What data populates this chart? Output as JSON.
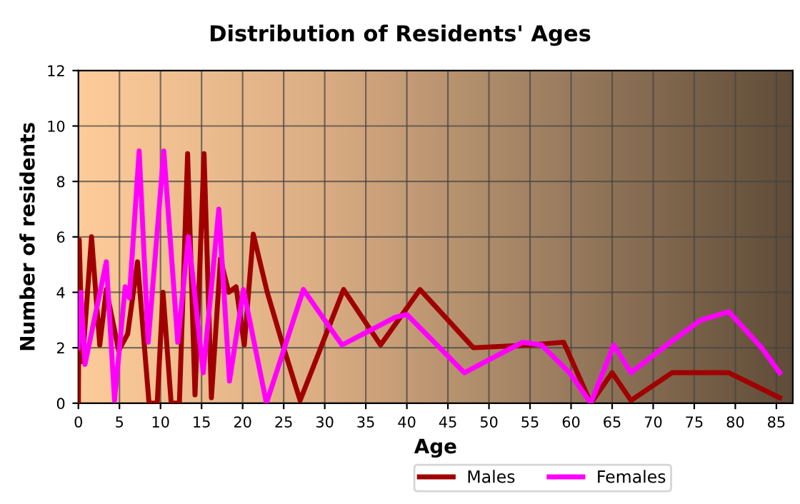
{
  "chart_data": {
    "type": "line",
    "title": "Distribution of Residents' Ages",
    "xlabel": "Age",
    "ylabel": "Number of residents",
    "xlim": [
      0,
      87
    ],
    "xticks": [
      0,
      5,
      10,
      15,
      20,
      25,
      30,
      35,
      40,
      45,
      50,
      55,
      60,
      65,
      70,
      75,
      80,
      85
    ],
    "ylim": [
      0,
      12
    ],
    "yticks": [
      0,
      2,
      4,
      6,
      8,
      10,
      12
    ],
    "grid": true,
    "legend": "bottom",
    "marker": "none",
    "line_style": "solid",
    "series": [
      {
        "name": "Males",
        "color": "#a00000",
        "x": [
          0,
          0.1,
          0.5,
          1.6,
          2.6,
          3.4,
          4.9,
          6,
          7.2,
          8.6,
          9.6,
          10.3,
          11.3,
          12.3,
          13.3,
          14.2,
          15.3,
          16.2,
          17.3,
          18.3,
          19.2,
          20.2,
          21.3,
          23,
          25,
          27,
          32.3,
          36.8,
          41.6,
          48.1,
          55,
          59.1,
          62.4,
          65,
          67.3,
          72.3,
          76.3,
          79.2,
          85.4
        ],
        "values": [
          0,
          5.9,
          1.5,
          6,
          2.1,
          4.1,
          1.9,
          2.5,
          5.1,
          0,
          0,
          4,
          0,
          0,
          9,
          0.3,
          9,
          0.2,
          5.2,
          4,
          4.2,
          2.1,
          6.1,
          4,
          2,
          0.1,
          4.1,
          2.1,
          4.1,
          2,
          2.1,
          2.2,
          0,
          1.1,
          0.1,
          1.1,
          1.1,
          1.1,
          0.2
        ]
      },
      {
        "name": "Females",
        "color": "#ff00ff",
        "x": [
          0,
          0.3,
          0.8,
          3.4,
          4.4,
          5.7,
          6.2,
          7.4,
          8.5,
          10.4,
          12.1,
          13.4,
          15.2,
          17.1,
          18.4,
          20.1,
          22.9,
          27.4,
          32.1,
          38.6,
          40,
          47,
          54.1,
          56.4,
          59.8,
          62.4,
          65.2,
          67.3,
          71.2,
          75.8,
          79.2,
          83.2,
          85.4
        ],
        "values": [
          2,
          4,
          1.4,
          5.1,
          0.1,
          4.2,
          3.8,
          9.1,
          2.2,
          9.1,
          2.2,
          6,
          1.1,
          7,
          0.8,
          4.1,
          0,
          4.1,
          2.1,
          3.1,
          3.2,
          1.1,
          2.2,
          2.1,
          1.1,
          0,
          2.1,
          1.1,
          2,
          3,
          3.3,
          2,
          1.1
        ]
      }
    ]
  }
}
